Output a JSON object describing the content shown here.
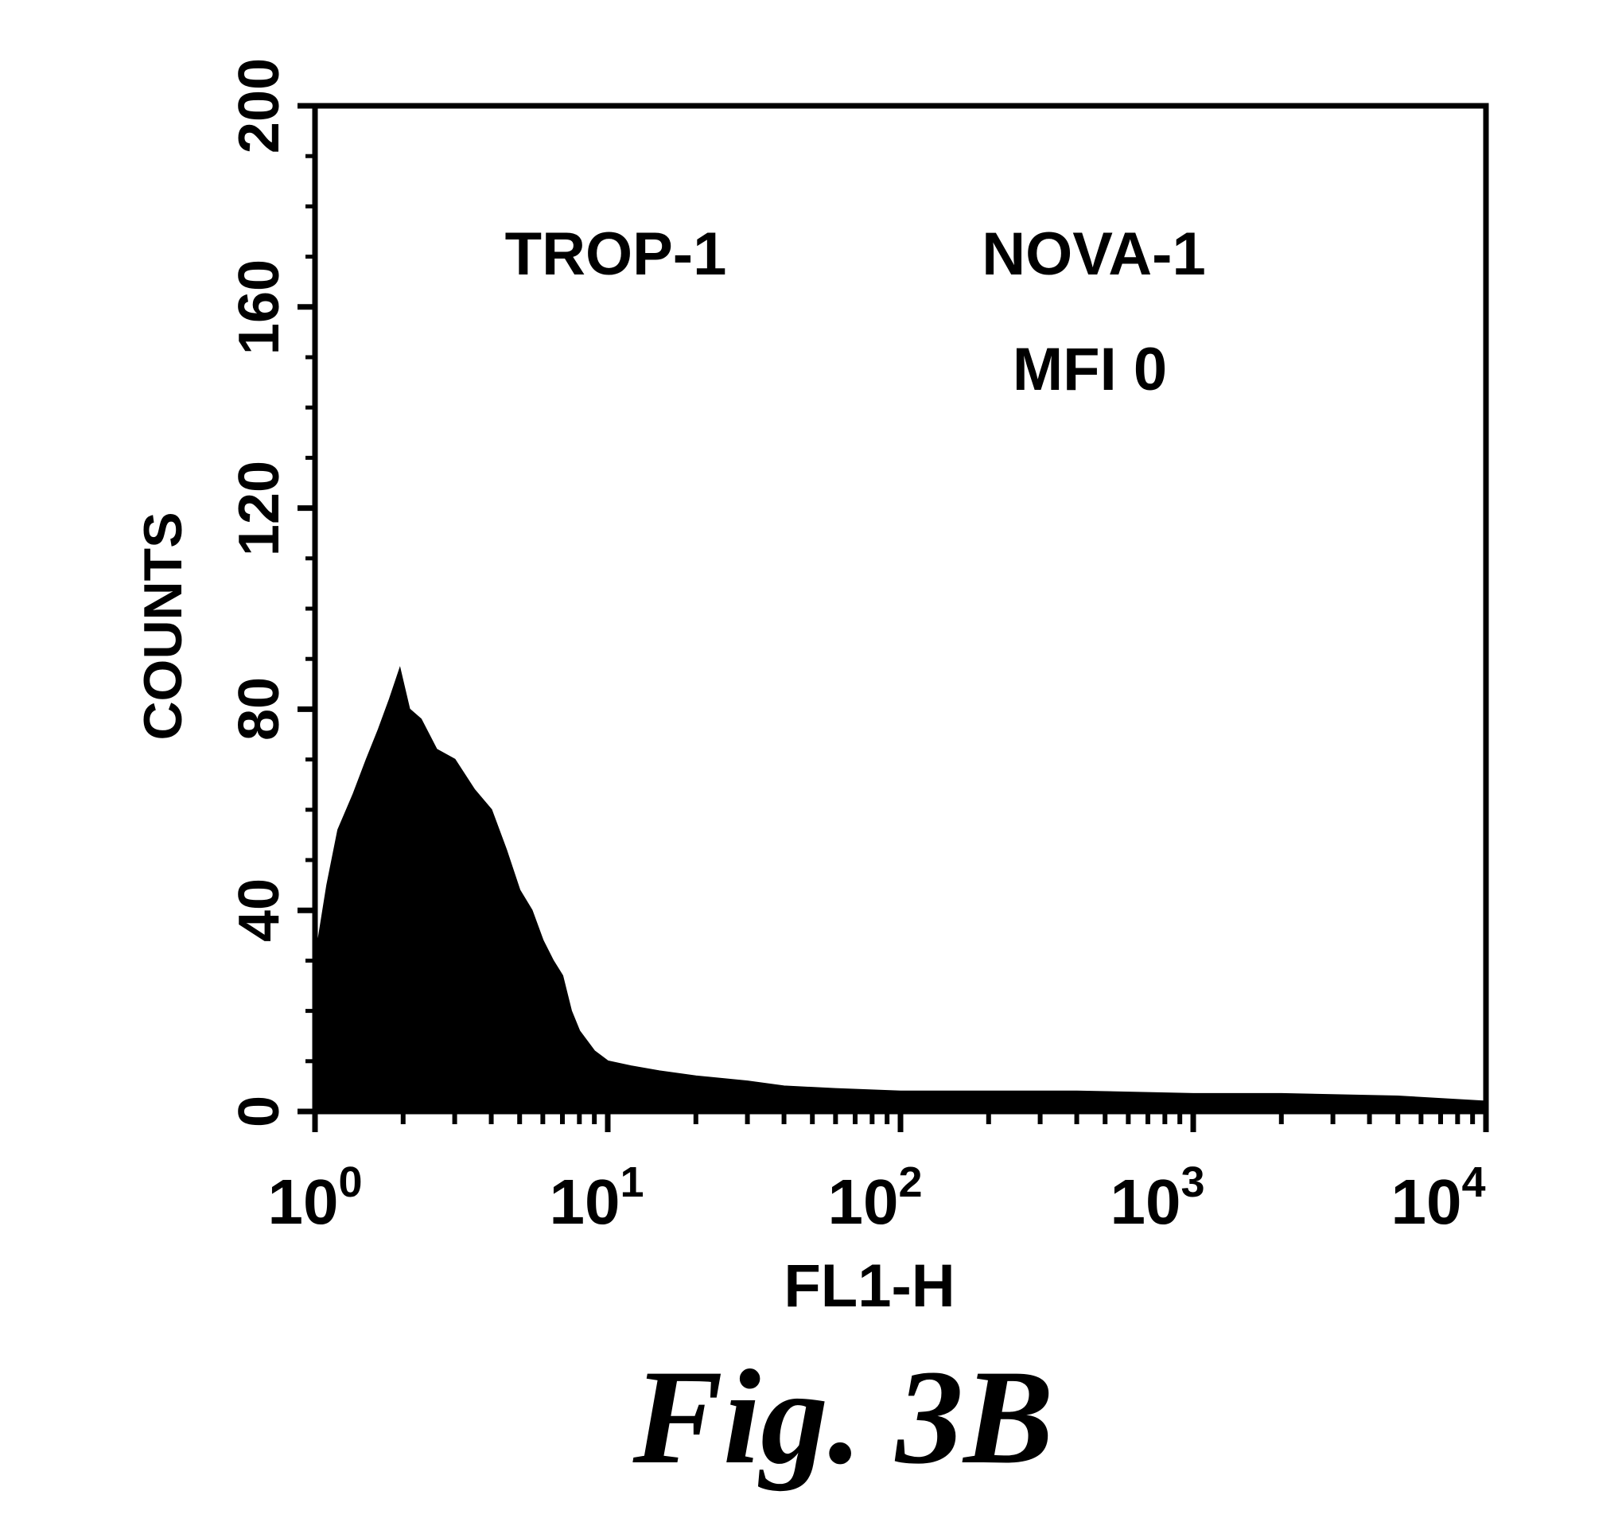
{
  "chart_data": {
    "type": "area",
    "xlabel": "FL1-H",
    "ylabel": "COUNTS",
    "x_scale": "log",
    "xlim": [
      1,
      10000
    ],
    "ylim": [
      0,
      200
    ],
    "y_ticks": [
      "0",
      "40",
      "80",
      "120",
      "160",
      "200"
    ],
    "x_ticks": [
      {
        "base": "10",
        "exp": "0"
      },
      {
        "base": "10",
        "exp": "1"
      },
      {
        "base": "10",
        "exp": "2"
      },
      {
        "base": "10",
        "exp": "3"
      },
      {
        "base": "10",
        "exp": "4"
      }
    ],
    "annotations": {
      "left": "TROP-1",
      "right_line1": "NOVA-1",
      "right_line2": "MFI 0"
    },
    "series": [
      {
        "x": [
          1.0,
          1.1,
          1.2,
          1.35,
          1.5,
          1.65,
          1.8,
          1.95,
          2.1,
          2.3,
          2.6,
          3.0,
          3.5,
          4.0,
          4.5,
          5.0,
          5.5,
          6.0,
          6.5,
          7.0,
          7.5,
          8.0,
          9.0,
          10,
          12,
          15,
          20,
          30,
          40,
          60,
          100,
          200,
          400,
          1000,
          2000,
          5000,
          10000
        ],
        "values": [
          30,
          45,
          56,
          63,
          70,
          76,
          82,
          88,
          80,
          78,
          72,
          70,
          64,
          60,
          52,
          44,
          40,
          34,
          30,
          27,
          20,
          16,
          12,
          10,
          9,
          8,
          7,
          6,
          5,
          4.5,
          4,
          4,
          4,
          3.5,
          3.5,
          3,
          2
        ]
      }
    ]
  },
  "caption": "Fig. 3B",
  "colors": {
    "ink": "#000000",
    "background": "#ffffff"
  }
}
